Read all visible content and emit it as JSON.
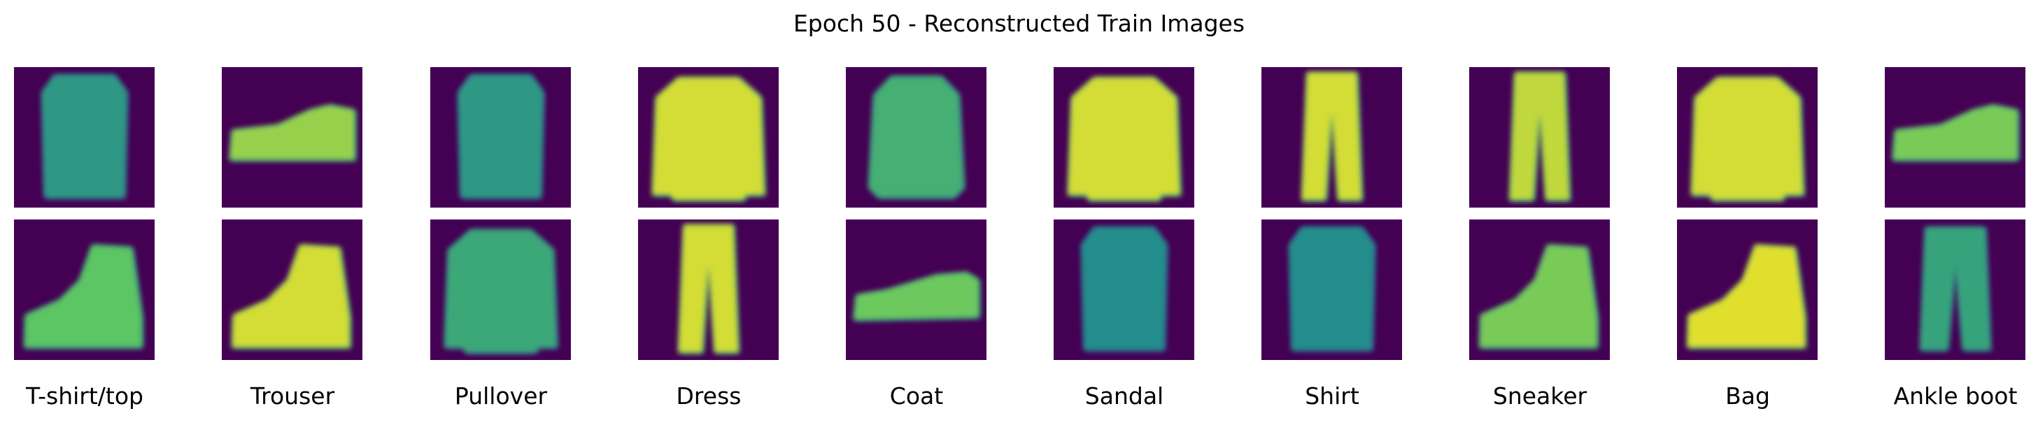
{
  "figure": {
    "title": "Epoch 50 - Reconstructed Train Images"
  },
  "colors": {
    "background": "#440154",
    "colormap": "viridis"
  },
  "columns": [
    {
      "label": "T-shirt/top",
      "images": [
        {
          "depicts": "tshirt",
          "intensity": 0.55
        },
        {
          "depicts": "boot",
          "intensity": 0.75
        }
      ]
    },
    {
      "label": "Trouser",
      "images": [
        {
          "depicts": "sneaker",
          "intensity": 0.85
        },
        {
          "depicts": "boot",
          "intensity": 0.95
        }
      ]
    },
    {
      "label": "Pullover",
      "images": [
        {
          "depicts": "tshirt",
          "intensity": 0.55
        },
        {
          "depicts": "pullover",
          "intensity": 0.62
        }
      ]
    },
    {
      "label": "Dress",
      "images": [
        {
          "depicts": "pullover",
          "intensity": 0.95
        },
        {
          "depicts": "trouser",
          "intensity": 0.95
        }
      ]
    },
    {
      "label": "Coat",
      "images": [
        {
          "depicts": "coat",
          "intensity": 0.65
        },
        {
          "depicts": "sandal",
          "intensity": 0.78
        }
      ]
    },
    {
      "label": "Sandal",
      "images": [
        {
          "depicts": "pullover",
          "intensity": 0.95
        },
        {
          "depicts": "tshirt",
          "intensity": 0.5
        }
      ]
    },
    {
      "label": "Shirt",
      "images": [
        {
          "depicts": "trouser",
          "intensity": 0.95
        },
        {
          "depicts": "tshirt",
          "intensity": 0.5
        }
      ]
    },
    {
      "label": "Sneaker",
      "images": [
        {
          "depicts": "trouser",
          "intensity": 0.92
        },
        {
          "depicts": "boot",
          "intensity": 0.8
        }
      ]
    },
    {
      "label": "Bag",
      "images": [
        {
          "depicts": "pullover",
          "intensity": 0.95
        },
        {
          "depicts": "boot",
          "intensity": 0.97
        }
      ]
    },
    {
      "label": "Ankle boot",
      "images": [
        {
          "depicts": "sneaker",
          "intensity": 0.8
        },
        {
          "depicts": "trouser-faint",
          "intensity": 0.6
        }
      ]
    }
  ]
}
